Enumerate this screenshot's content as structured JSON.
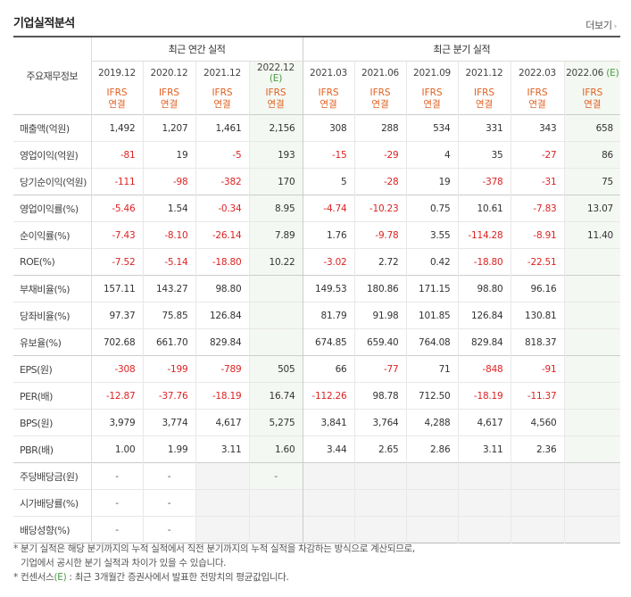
{
  "title": "기업실적분석",
  "more_label": "더보기",
  "corner_label": "주요재무정보",
  "annual_header": "최근 연간 실적",
  "quarterly_header": "최근 분기 실적",
  "est_mark": "(E)",
  "periods": [
    {
      "label": "2019.12",
      "est": false
    },
    {
      "label": "2020.12",
      "est": false
    },
    {
      "label": "2021.12",
      "est": false
    },
    {
      "label": "2022.12",
      "est": true
    },
    {
      "label": "2021.03",
      "est": false
    },
    {
      "label": "2021.06",
      "est": false
    },
    {
      "label": "2021.09",
      "est": false
    },
    {
      "label": "2021.12",
      "est": false
    },
    {
      "label": "2022.03",
      "est": false
    },
    {
      "label": "2022.06",
      "est": true
    }
  ],
  "basis": [
    "IFRS",
    "연결"
  ],
  "groups_start": [
    0,
    3,
    6,
    9,
    13
  ],
  "rows": [
    {
      "label": "매출액(억원)",
      "values": [
        "1,492",
        "1,207",
        "1,461",
        "2,156",
        "308",
        "288",
        "534",
        "331",
        "343",
        "658"
      ]
    },
    {
      "label": "영업이익(억원)",
      "values": [
        "-81",
        "19",
        "-5",
        "193",
        "-15",
        "-29",
        "4",
        "35",
        "-27",
        "86"
      ]
    },
    {
      "label": "당기순이익(억원)",
      "values": [
        "-111",
        "-98",
        "-382",
        "170",
        "5",
        "-28",
        "19",
        "-378",
        "-31",
        "75"
      ]
    },
    {
      "label": "영업이익률(%)",
      "values": [
        "-5.46",
        "1.54",
        "-0.34",
        "8.95",
        "-4.74",
        "-10.23",
        "0.75",
        "10.61",
        "-7.83",
        "13.07"
      ]
    },
    {
      "label": "순이익률(%)",
      "values": [
        "-7.43",
        "-8.10",
        "-26.14",
        "7.89",
        "1.76",
        "-9.78",
        "3.55",
        "-114.28",
        "-8.91",
        "11.40"
      ]
    },
    {
      "label": "ROE(%)",
      "values": [
        "-7.52",
        "-5.14",
        "-18.80",
        "10.22",
        "-3.02",
        "2.72",
        "0.42",
        "-18.80",
        "-22.51",
        ""
      ]
    },
    {
      "label": "부채비율(%)",
      "values": [
        "157.11",
        "143.27",
        "98.80",
        "",
        "149.53",
        "180.86",
        "171.15",
        "98.80",
        "96.16",
        ""
      ]
    },
    {
      "label": "당좌비율(%)",
      "values": [
        "97.37",
        "75.85",
        "126.84",
        "",
        "81.79",
        "91.98",
        "101.85",
        "126.84",
        "130.81",
        ""
      ]
    },
    {
      "label": "유보율(%)",
      "values": [
        "702.68",
        "661.70",
        "829.84",
        "",
        "674.85",
        "659.40",
        "764.08",
        "829.84",
        "818.37",
        ""
      ]
    },
    {
      "label": "EPS(원)",
      "values": [
        "-308",
        "-199",
        "-789",
        "505",
        "66",
        "-77",
        "71",
        "-848",
        "-91",
        ""
      ]
    },
    {
      "label": "PER(배)",
      "values": [
        "-12.87",
        "-37.76",
        "-18.19",
        "16.74",
        "-112.26",
        "98.78",
        "712.50",
        "-18.19",
        "-11.37",
        ""
      ]
    },
    {
      "label": "BPS(원)",
      "values": [
        "3,979",
        "3,774",
        "4,617",
        "5,275",
        "3,841",
        "3,764",
        "4,288",
        "4,617",
        "4,560",
        ""
      ]
    },
    {
      "label": "PBR(배)",
      "values": [
        "1.00",
        "1.99",
        "3.11",
        "1.60",
        "3.44",
        "2.65",
        "2.86",
        "3.11",
        "2.36",
        ""
      ]
    },
    {
      "label": "주당배당금(원)",
      "values": [
        "-",
        "-",
        "",
        "-",
        "",
        "",
        "",
        "",
        "",
        ""
      ]
    },
    {
      "label": "시가배당률(%)",
      "values": [
        "-",
        "-",
        "",
        "",
        "",
        "",
        "",
        "",
        "",
        ""
      ]
    },
    {
      "label": "배당성향(%)",
      "values": [
        "-",
        "-",
        "",
        "",
        "",
        "",
        "",
        "",
        "",
        ""
      ]
    }
  ],
  "empty_shaded": [
    [
      13,
      2
    ],
    [
      13,
      4
    ],
    [
      13,
      5
    ],
    [
      13,
      6
    ],
    [
      13,
      7
    ],
    [
      13,
      8
    ],
    [
      13,
      9
    ],
    [
      14,
      2
    ],
    [
      14,
      3
    ],
    [
      14,
      4
    ],
    [
      14,
      5
    ],
    [
      14,
      6
    ],
    [
      14,
      7
    ],
    [
      14,
      8
    ],
    [
      14,
      9
    ],
    [
      15,
      2
    ],
    [
      15,
      3
    ],
    [
      15,
      4
    ],
    [
      15,
      5
    ],
    [
      15,
      6
    ],
    [
      15,
      7
    ],
    [
      15,
      8
    ],
    [
      15,
      9
    ]
  ],
  "notes": {
    "n1a": "* 분기 실적은 해당 분기까지의 누적 실적에서 직전 분기까지의 누적 실적을 차감하는 방식으로 계산되므로,",
    "n1b": "기업에서 공시한 분기 실적과 차이가 있을 수 있습니다.",
    "n2a": "* 컨센서스",
    "n2e": "(E)",
    "n2b": " : 최근 3개월간 증권사에서 발표한 전망치의 평균값입니다."
  }
}
